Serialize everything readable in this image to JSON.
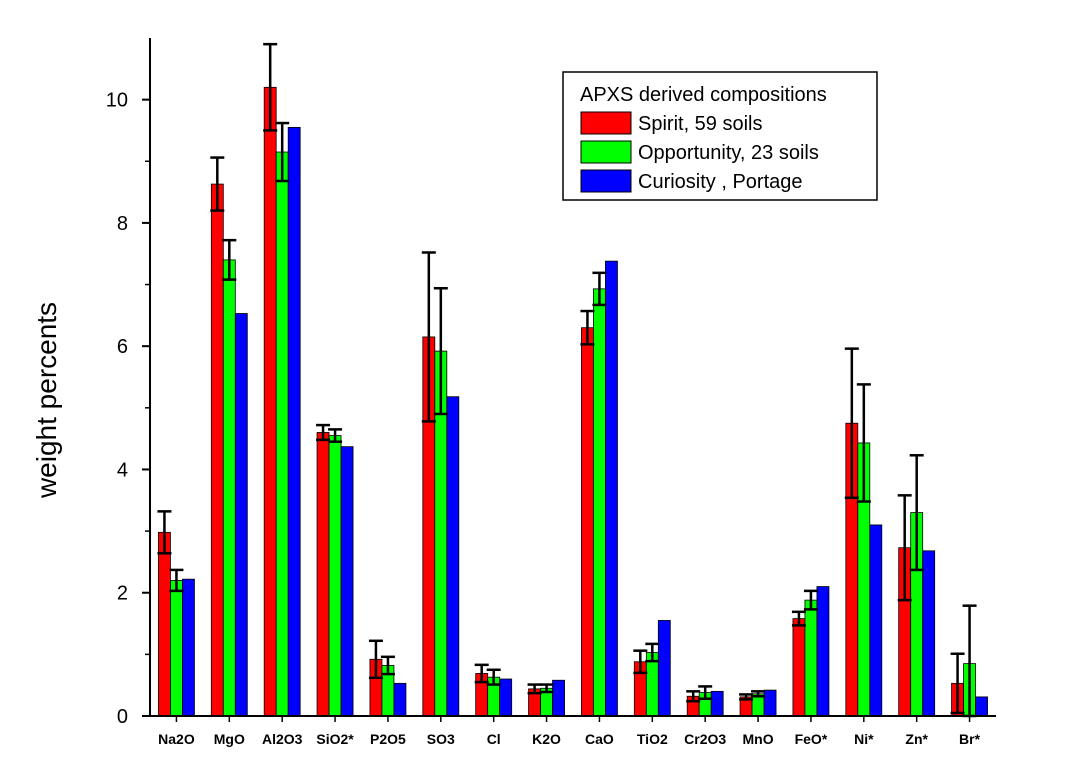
{
  "chart_data": {
    "type": "bar",
    "ylabel": "weight percents",
    "ylim": [
      0,
      11
    ],
    "yticks": [
      0,
      2,
      4,
      6,
      8,
      10
    ],
    "grid": false,
    "legend_position": "top-right",
    "legend_title": "APXS derived compositions",
    "categories": [
      "Na2O",
      "MgO",
      "Al2O3",
      "SiO2*",
      "P2O5",
      "SO3",
      "Cl",
      "K2O",
      "CaO",
      "TiO2",
      "Cr2O3",
      "MnO",
      "FeO*",
      "Ni*",
      "Zn*",
      "Br*"
    ],
    "series": [
      {
        "name": "Spirit, 59 soils",
        "color": "#ff0000",
        "values": [
          2.98,
          8.63,
          10.2,
          4.6,
          0.92,
          6.15,
          0.69,
          0.44,
          6.3,
          0.88,
          0.32,
          0.31,
          1.58,
          4.75,
          2.73,
          0.53
        ],
        "errors": [
          0.34,
          0.43,
          0.7,
          0.12,
          0.3,
          1.37,
          0.14,
          0.07,
          0.27,
          0.18,
          0.08,
          0.04,
          0.11,
          1.21,
          0.85,
          0.48
        ]
      },
      {
        "name": "Opportunity, 23 soils",
        "color": "#00ff00",
        "values": [
          2.2,
          7.4,
          9.15,
          4.55,
          0.82,
          5.92,
          0.63,
          0.45,
          6.93,
          1.03,
          0.38,
          0.36,
          1.88,
          4.43,
          3.3,
          0.85
        ],
        "errors": [
          0.17,
          0.32,
          0.47,
          0.1,
          0.14,
          1.02,
          0.12,
          0.06,
          0.26,
          0.14,
          0.1,
          0.04,
          0.15,
          0.95,
          0.93,
          0.94
        ]
      },
      {
        "name": "Curiosity , Portage",
        "color": "#0000ff",
        "values": [
          2.22,
          6.53,
          9.55,
          4.37,
          0.53,
          5.18,
          0.6,
          0.58,
          7.38,
          1.55,
          0.4,
          0.42,
          2.1,
          3.1,
          2.68,
          0.31
        ],
        "errors": []
      }
    ]
  }
}
